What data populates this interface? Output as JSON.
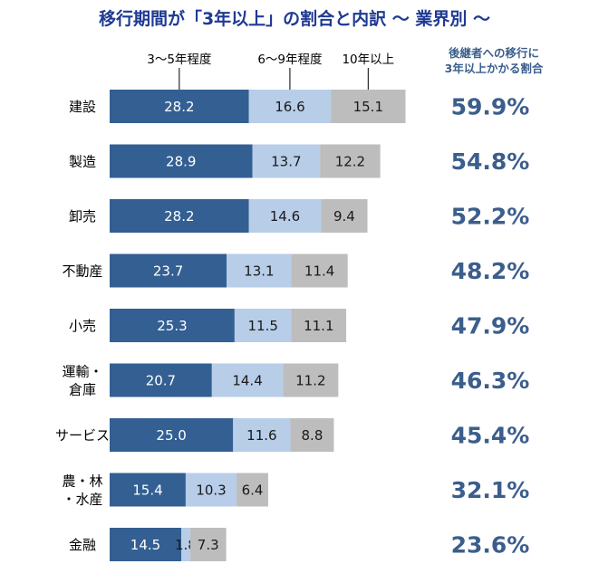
{
  "title": "移行期間が「3年以上」の割合と内訳 ～ 業界別 ～",
  "side_heading": [
    "後継者への移行に",
    "3年以上かかる割合"
  ],
  "colors": {
    "title": "#1f3a93",
    "ratio": "#3b5e8c",
    "seg1": "#335f92",
    "seg2": "#b7cde8",
    "seg3": "#bdbdbd"
  },
  "chart_data": {
    "type": "bar",
    "orientation": "horizontal",
    "stacked": true,
    "categories": [
      [
        "建設"
      ],
      [
        "製造"
      ],
      [
        "卸売"
      ],
      [
        "不動産"
      ],
      [
        "小売"
      ],
      [
        "運輸・",
        "倉庫"
      ],
      [
        "サービス"
      ],
      [
        "農・林",
        "・水産"
      ],
      [
        "金融"
      ]
    ],
    "series": [
      {
        "name": "3～5年程度",
        "values": [
          28.2,
          28.9,
          28.2,
          23.7,
          25.3,
          20.7,
          25.0,
          15.4,
          14.5
        ]
      },
      {
        "name": "6～9年程度",
        "values": [
          16.6,
          13.7,
          14.6,
          13.1,
          11.5,
          14.4,
          11.6,
          10.3,
          1.8
        ]
      },
      {
        "name": "10年以上",
        "values": [
          15.1,
          12.2,
          9.4,
          11.4,
          11.1,
          11.2,
          8.8,
          6.4,
          7.3
        ]
      }
    ],
    "value_labels": [
      [
        "28.2",
        "28.9",
        "28.2",
        "23.7",
        "25.3",
        "20.7",
        "25.0",
        "15.4",
        "14.5"
      ],
      [
        "16.6",
        "13.7",
        "14.6",
        "13.1",
        "11.5",
        "14.4",
        "11.6",
        "10.3",
        "1.8"
      ],
      [
        "15.1",
        "12.2",
        "9.4",
        "11.4",
        "11.1",
        "11.2",
        "8.8",
        "6.4",
        "7.3"
      ]
    ],
    "total_labels": [
      "59.9%",
      "54.8%",
      "52.2%",
      "48.2%",
      "47.9%",
      "46.3%",
      "45.4%",
      "32.1%",
      "23.6%"
    ],
    "xlim": [
      0,
      60
    ],
    "grid": false,
    "legend_placement": "top"
  }
}
